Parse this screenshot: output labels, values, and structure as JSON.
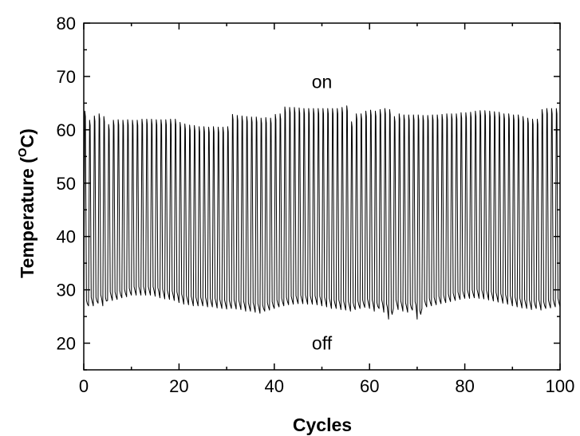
{
  "chart_data": {
    "type": "line",
    "xlabel": "Cycles",
    "ylabel": {
      "prefix": "Temperature (",
      "superscript": "O",
      "suffix": "C)"
    },
    "xlim": [
      0,
      100
    ],
    "ylim": [
      15,
      80
    ],
    "x_ticks": [
      0,
      20,
      40,
      60,
      80,
      100
    ],
    "y_ticks": [
      20,
      30,
      40,
      50,
      60,
      70,
      80
    ],
    "x_minor_step": 10,
    "y_minor_step": 5,
    "grid": false,
    "annotations": [
      {
        "text": "on",
        "x": 50,
        "y": 69
      },
      {
        "text": "off",
        "x": 50,
        "y": 20
      }
    ],
    "series": [
      {
        "color": "#000000",
        "cycles": 100,
        "peaks": [
          63.5,
          61.8,
          62.6,
          63.0,
          62.5,
          61.0,
          61.8,
          61.9,
          61.8,
          61.9,
          61.8,
          61.8,
          62.0,
          62.0,
          62.0,
          61.9,
          61.9,
          61.9,
          62.0,
          62.0,
          61.4,
          61.1,
          60.9,
          60.8,
          60.6,
          60.6,
          60.5,
          60.6,
          60.5,
          60.5,
          60.6,
          62.9,
          62.7,
          62.6,
          62.5,
          62.4,
          62.4,
          62.2,
          62.3,
          62.2,
          62.9,
          63.0,
          64.3,
          64.2,
          64.2,
          64.1,
          64.0,
          64.0,
          64.0,
          64.0,
          64.0,
          64.0,
          64.0,
          64.0,
          64.2,
          64.5,
          61.5,
          63.0,
          63.0,
          63.5,
          63.7,
          63.5,
          63.8,
          64.0,
          63.8,
          62.5,
          63.0,
          62.8,
          62.8,
          62.8,
          62.8,
          62.7,
          62.7,
          62.8,
          62.8,
          62.9,
          63.0,
          63.0,
          63.0,
          63.2,
          63.2,
          63.3,
          63.5,
          63.6,
          63.6,
          63.5,
          63.4,
          63.3,
          63.0,
          63.0,
          62.8,
          62.8,
          62.5,
          62.2,
          62.0,
          62.0,
          63.8,
          64.0,
          64.0,
          64.0
        ],
        "troughs": [
          26.5,
          27.0,
          27.0,
          27.5,
          27.0,
          28.0,
          28.0,
          28.2,
          28.5,
          28.7,
          29.0,
          29.0,
          29.0,
          29.0,
          29.0,
          28.8,
          28.5,
          28.3,
          28.2,
          28.0,
          27.6,
          27.3,
          27.2,
          27.0,
          27.0,
          27.0,
          26.8,
          26.8,
          26.6,
          26.5,
          26.4,
          26.5,
          26.4,
          26.3,
          26.0,
          26.0,
          25.8,
          25.6,
          26.0,
          26.2,
          26.5,
          26.8,
          27.0,
          27.2,
          27.3,
          27.4,
          27.4,
          27.3,
          27.3,
          27.2,
          27.0,
          26.8,
          26.5,
          26.5,
          26.3,
          26.2,
          26.0,
          26.3,
          26.5,
          26.7,
          26.5,
          26.0,
          26.5,
          25.8,
          24.5,
          26.5,
          26.3,
          26.0,
          25.8,
          26.2,
          24.5,
          26.5,
          26.8,
          27.0,
          27.2,
          27.4,
          27.6,
          27.8,
          28.0,
          28.2,
          28.4,
          28.4,
          28.5,
          28.4,
          28.3,
          28.1,
          27.9,
          27.7,
          27.5,
          27.3,
          27.0,
          26.8,
          26.6,
          26.5,
          26.3,
          26.5,
          26.2,
          26.5,
          26.6,
          26.8
        ]
      }
    ]
  }
}
